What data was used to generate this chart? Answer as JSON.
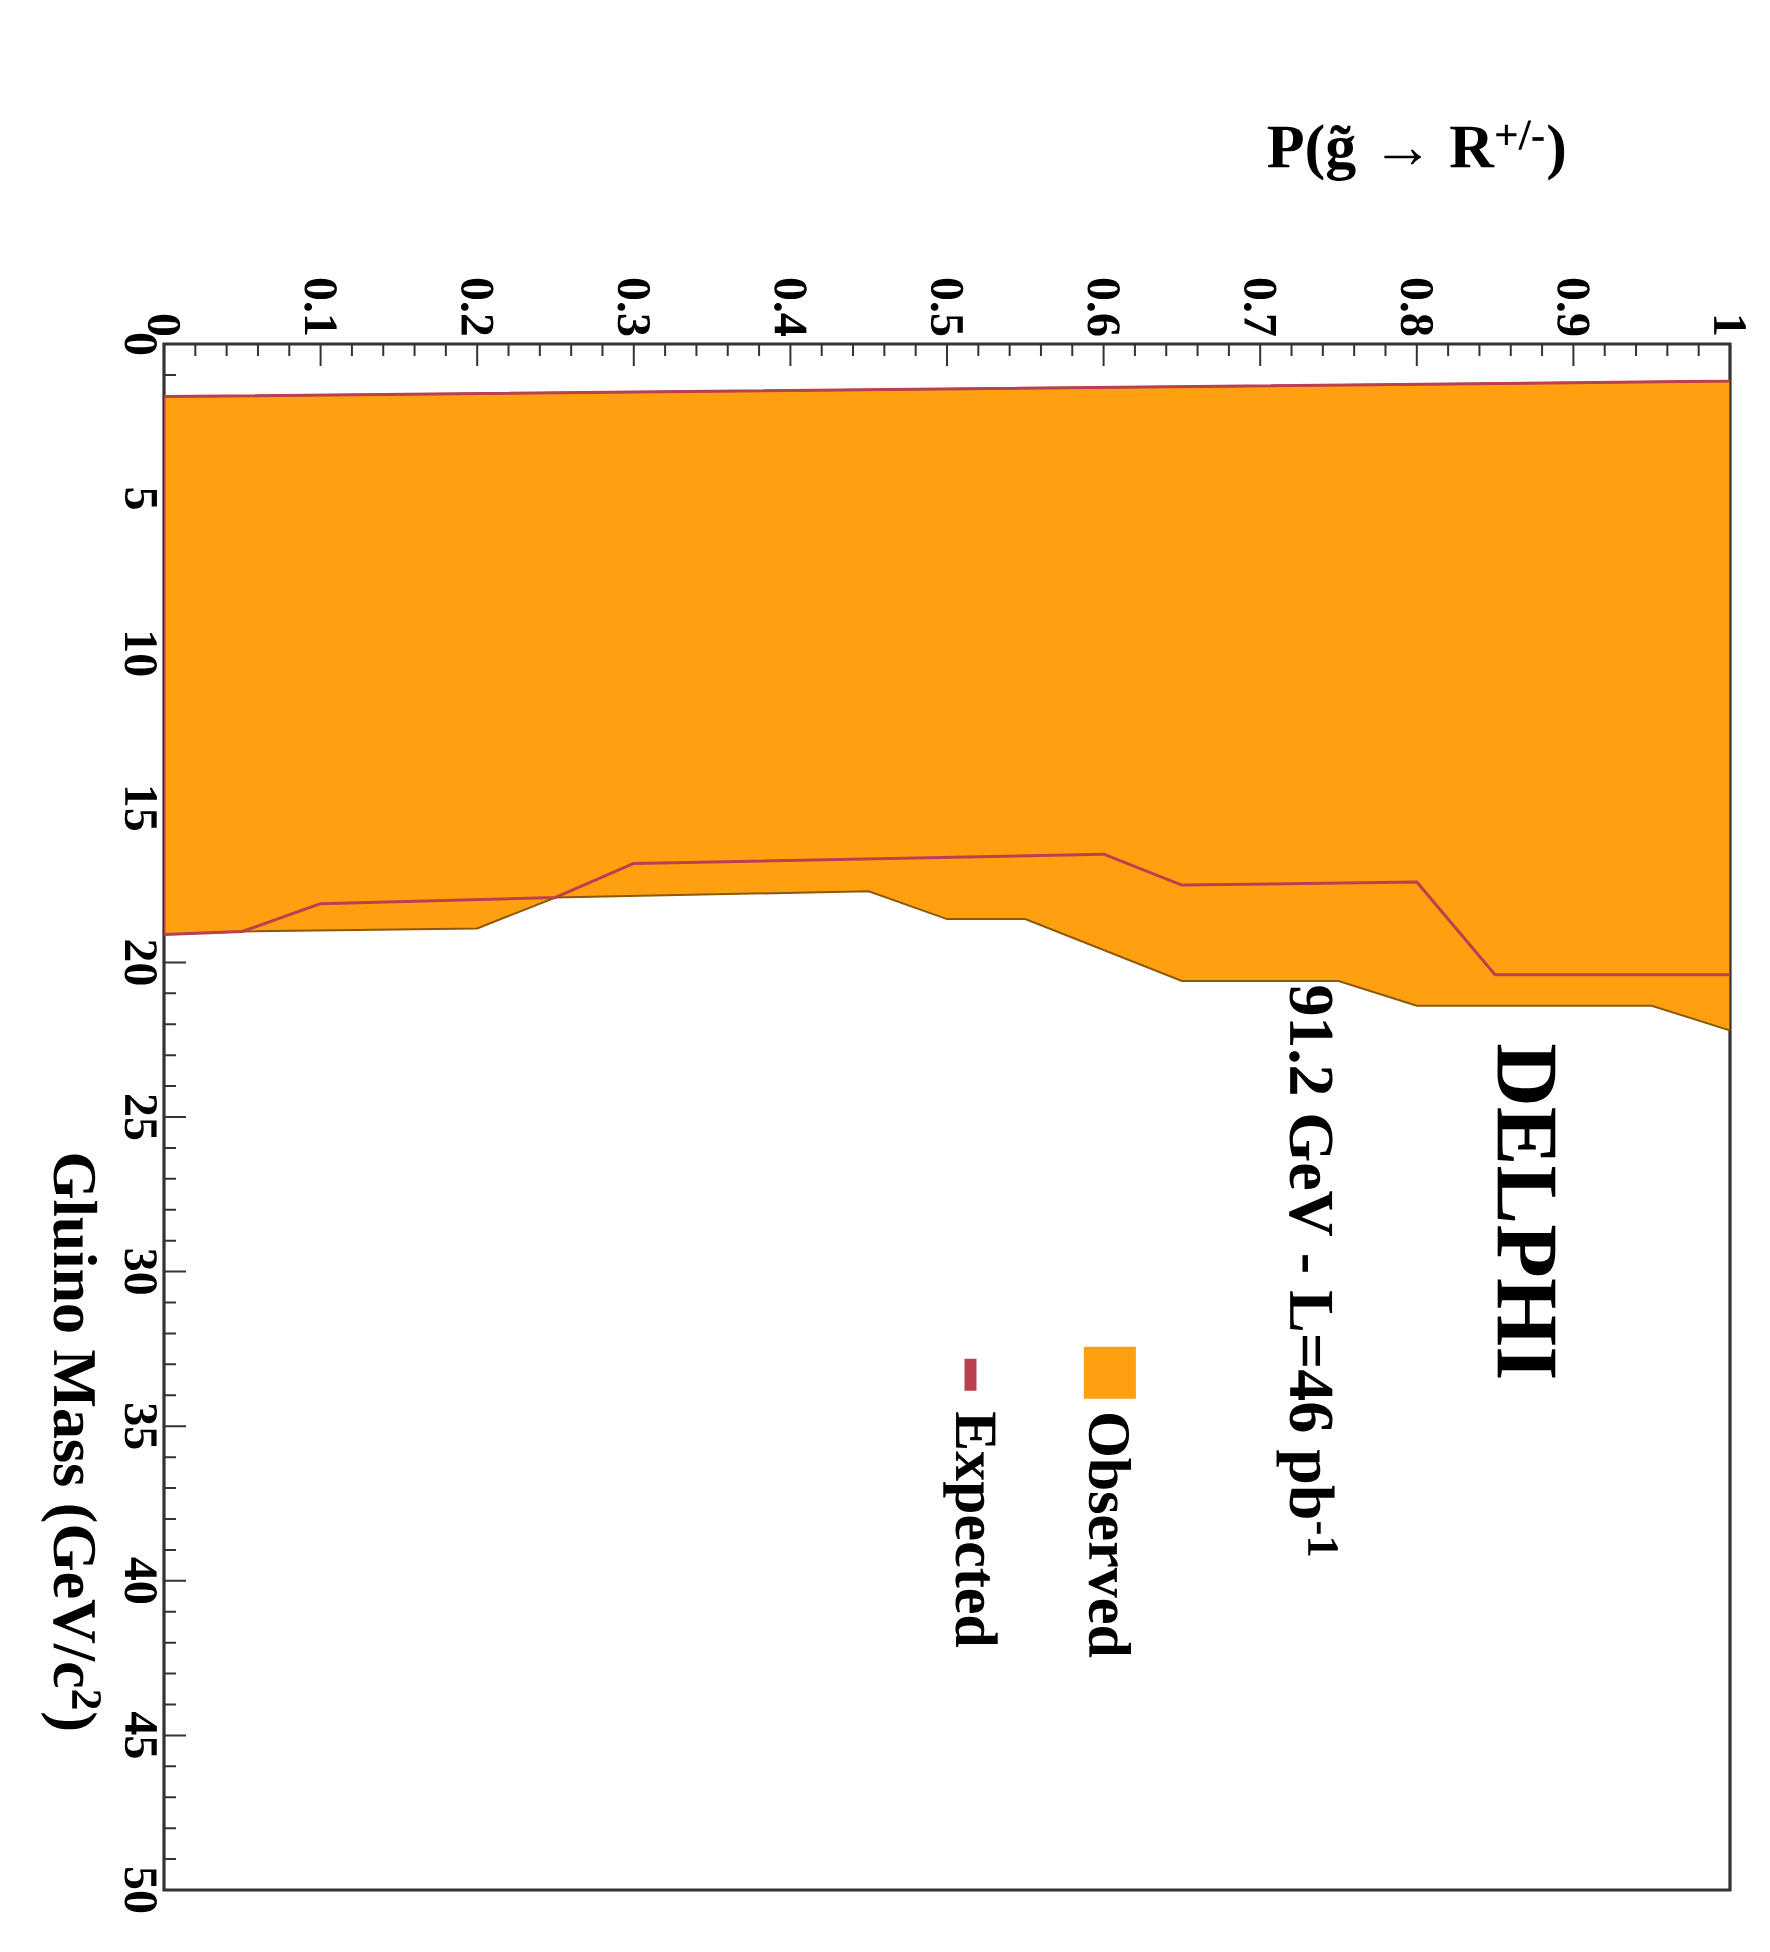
{
  "chart_data": {
    "type": "area",
    "xlabel": "P(g̃ → R$^{+/-}$)",
    "ylabel": "Gluino Mass (GeV/c$^{2}$)",
    "annotations": [
      "DELPHI",
      "91.2 GeV - L=46 pb$^{-1}$"
    ],
    "xlim": [
      0,
      1
    ],
    "ylim": [
      50,
      0
    ],
    "xticks": [
      0,
      0.1,
      0.2,
      0.3,
      0.4,
      0.5,
      0.6,
      0.7,
      0.8,
      0.9,
      1
    ],
    "yticks": [
      0,
      5,
      10,
      15,
      20,
      25,
      30,
      35,
      40,
      45,
      50
    ],
    "legend": "bottom",
    "series": [
      {
        "name": "Observed",
        "color": "#ffa010",
        "x": [
          0,
          0,
          0.05,
          0.2,
          0.25,
          0.45,
          0.5,
          0.55,
          0.65,
          0.75,
          0.8,
          0.95,
          1,
          1
        ],
        "values": [
          1.7,
          19.1,
          19.0,
          18.9,
          17.9,
          17.7,
          18.6,
          18.6,
          20.6,
          20.6,
          21.4,
          21.4,
          22.2,
          1.2
        ]
      },
      {
        "name": "Expected",
        "type": "line",
        "color": "#b8404f",
        "x": [
          1,
          0,
          0,
          0.05,
          0.1,
          0.25,
          0.3,
          0.6,
          0.65,
          0.8,
          0.85,
          1
        ],
        "values": [
          1.2,
          1.7,
          19.1,
          19.0,
          18.1,
          17.9,
          16.8,
          16.5,
          17.5,
          17.4,
          20.4,
          20.4
        ]
      }
    ]
  }
}
